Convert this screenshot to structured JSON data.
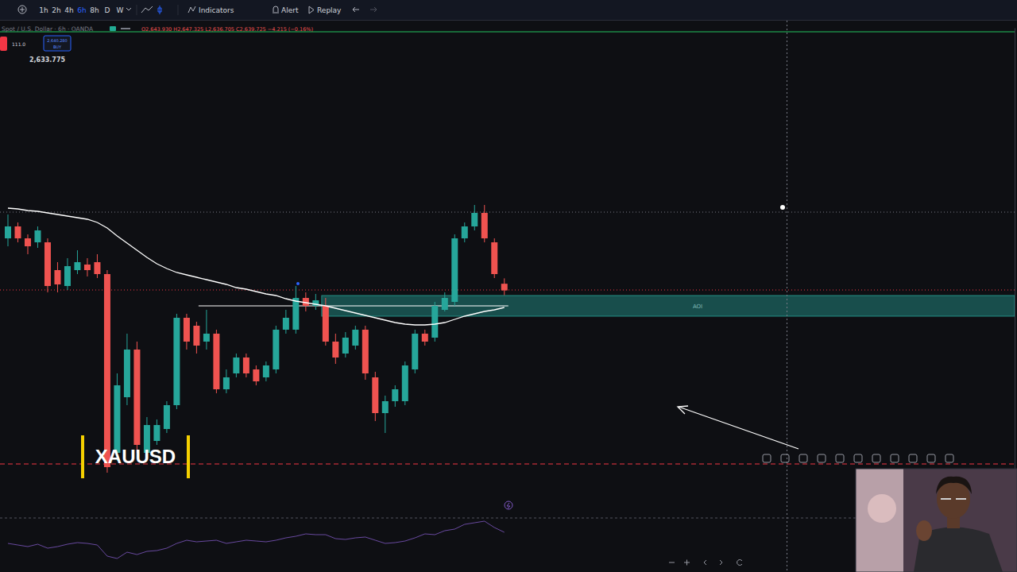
{
  "toolbar": {
    "intervals": [
      "1h",
      "2h",
      "4h",
      "6h",
      "8h",
      "D",
      "W"
    ],
    "active_interval": "6h",
    "buttons": [
      "Indicators",
      "Alert",
      "Replay"
    ]
  },
  "legend_header": {
    "symbol": "Spot / U.S. Dollar · 6h · OANDA",
    "ohlc": "O2,643.930 H2,647.325 L2,636.705 C2,639.725 −4.215 (−0.16%)",
    "spread": "111.0",
    "buy_price": "2,640.280",
    "buy_label": "BUY",
    "indicator_value": "2,633.775"
  },
  "caption": "XAUUSD",
  "chart_data": [
    {
      "type": "candlestick",
      "categories": [
        null,
        null,
        null,
        null,
        null,
        null,
        null,
        null,
        null,
        null,
        null,
        null,
        null,
        null,
        null,
        null,
        null,
        null,
        null,
        null,
        null,
        null,
        null,
        null,
        null,
        null,
        null,
        null,
        null,
        null,
        null,
        null,
        null,
        null,
        null,
        null,
        null,
        null,
        null,
        null,
        null,
        null,
        null,
        null,
        null,
        null,
        null,
        null,
        null,
        null,
        null
      ],
      "open": [
        2672.5,
        2680,
        2672.5,
        2670,
        2670,
        2652.5,
        2642.5,
        2652.5,
        2656,
        2657.5,
        2650,
        2537.5,
        2572.5,
        2602.5,
        2537.5,
        2545,
        2552.5,
        2567.5,
        2622.5,
        2617.5,
        2607.5,
        2612.5,
        2577.5,
        2587.5,
        2597.5,
        2590,
        2585,
        2590,
        2615,
        2615,
        2635,
        2630,
        2630,
        2607.5,
        2600,
        2605,
        2615,
        2585,
        2562.5,
        2570,
        2570,
        2590,
        2612.5,
        2610,
        2627.5,
        2632.5,
        2672.5,
        2680,
        2688.5,
        2670,
        2643.93
      ],
      "high": [
        2687.5,
        2682.5,
        2675,
        2680,
        2672.5,
        2657.5,
        2660,
        2665,
        2660,
        2662.5,
        2652.5,
        2587.5,
        2612.5,
        2607.5,
        2560,
        2558.5,
        2570,
        2625,
        2625,
        2620,
        2627.5,
        2615,
        2590,
        2600,
        2600,
        2592.5,
        2595,
        2617.5,
        2627.5,
        2642.5,
        2638.5,
        2637.5,
        2635,
        2612.5,
        2613.5,
        2617.5,
        2617.5,
        2588.5,
        2573.5,
        2580,
        2595,
        2615,
        2615,
        2632.5,
        2638.5,
        2675,
        2682.5,
        2693.5,
        2693.5,
        2672.5,
        2647.325
      ],
      "low": [
        2667.5,
        2670,
        2662.5,
        2666.5,
        2638.5,
        2638.5,
        2640,
        2650,
        2648.5,
        2647.5,
        2525,
        2532.5,
        2567.5,
        2537.5,
        2533.5,
        2542.5,
        2550,
        2565,
        2602.5,
        2600,
        2602.5,
        2575,
        2575,
        2585,
        2585,
        2580,
        2582.5,
        2587.5,
        2612.5,
        2612.5,
        2626.5,
        2627.5,
        2605,
        2593.5,
        2597.5,
        2602.5,
        2583.5,
        2557.5,
        2550,
        2566.5,
        2567.5,
        2587.5,
        2605,
        2607.5,
        2626.5,
        2630,
        2670,
        2677.5,
        2670,
        2647.5,
        2636.705
      ],
      "close": [
        2680,
        2672.5,
        2667.5,
        2677.5,
        2642.5,
        2643.5,
        2655,
        2657.5,
        2652.5,
        2650,
        2528.5,
        2580,
        2602.5,
        2542.5,
        2555,
        2555,
        2567.5,
        2622.5,
        2607.5,
        2605,
        2612.5,
        2577.5,
        2585,
        2597.5,
        2587.5,
        2582.5,
        2592.5,
        2615,
        2622.5,
        2635,
        2630,
        2633.5,
        2607.5,
        2597.5,
        2610,
        2615,
        2587.5,
        2562.5,
        2570,
        2577.5,
        2592.5,
        2612.5,
        2607.5,
        2630,
        2635,
        2672.5,
        2680,
        2688.5,
        2672.5,
        2650,
        2639.725
      ],
      "series": [
        {
          "type": "line",
          "color": "#ffffff",
          "values": [
            2691.5,
            2691,
            2690,
            2689.5,
            2688.5,
            2687.5,
            2686.5,
            2685.5,
            2684.5,
            2682.5,
            2679,
            2674,
            2669.5,
            2665,
            2660.5,
            2656.5,
            2653.5,
            2651,
            2649.5,
            2648,
            2646.5,
            2645,
            2643.5,
            2641.5,
            2640.5,
            2639,
            2637.5,
            2636.5,
            2634.5,
            2633,
            2632,
            2631,
            2630,
            2628.5,
            2627,
            2625.5,
            2624,
            2622.5,
            2621,
            2619.5,
            2618.5,
            2618,
            2618,
            2618.5,
            2619.5,
            2621.5,
            2623.5,
            2625,
            2626.5,
            2627.5,
            2629
          ]
        }
      ],
      "levels": [
        {
          "value": 2802.5,
          "color": "#22c55e",
          "line_style": "solid"
        },
        {
          "value": 2689,
          "color": "#787b86",
          "line_style": "dotted"
        },
        {
          "value": 2640,
          "color": "#f23645",
          "line_style": "dotted"
        },
        {
          "value": 2530.5,
          "color": "#f23645",
          "line_style": "dashed"
        }
      ],
      "zones": [
        {
          "label": "AOI",
          "from": 2623.5,
          "to": 2636.5,
          "x0": 31.6,
          "color": "#26a69a"
        }
      ],
      "segments": [
        {
          "value": 2630,
          "x0": 19.2,
          "x1": 50.4,
          "color": "#ffffff"
        }
      ],
      "ylim": [
        2497.5,
        2805
      ],
      "yticks": [],
      "tick_labels": false,
      "grid": false
    },
    {
      "type": "line",
      "categories": [
        null,
        null,
        null,
        null,
        null,
        null,
        null,
        null,
        null,
        null,
        null,
        null,
        null,
        null,
        null,
        null,
        null,
        null,
        null,
        null,
        null,
        null,
        null,
        null,
        null,
        null,
        null,
        null,
        null,
        null,
        null,
        null,
        null,
        null,
        null,
        null,
        null,
        null,
        null,
        null,
        null,
        null,
        null,
        null,
        null,
        null,
        null,
        null,
        null,
        null,
        null
      ],
      "series": [
        {
          "color": "#7e57c2",
          "values": [
            48,
            46,
            44,
            47,
            42,
            44,
            47,
            49,
            48,
            46,
            32,
            29,
            37,
            34,
            38,
            39,
            42,
            48,
            52,
            50,
            51,
            52,
            48,
            50,
            52,
            51,
            50,
            52,
            55,
            57,
            60,
            59,
            59,
            54,
            53,
            55,
            56,
            52,
            48,
            49,
            51,
            55,
            60,
            59,
            64,
            66,
            72,
            74,
            76,
            68,
            62
          ]
        }
      ],
      "ylim": [
        24,
        80
      ],
      "yticks": [],
      "tick_labels": false,
      "grid": false
    }
  ]
}
